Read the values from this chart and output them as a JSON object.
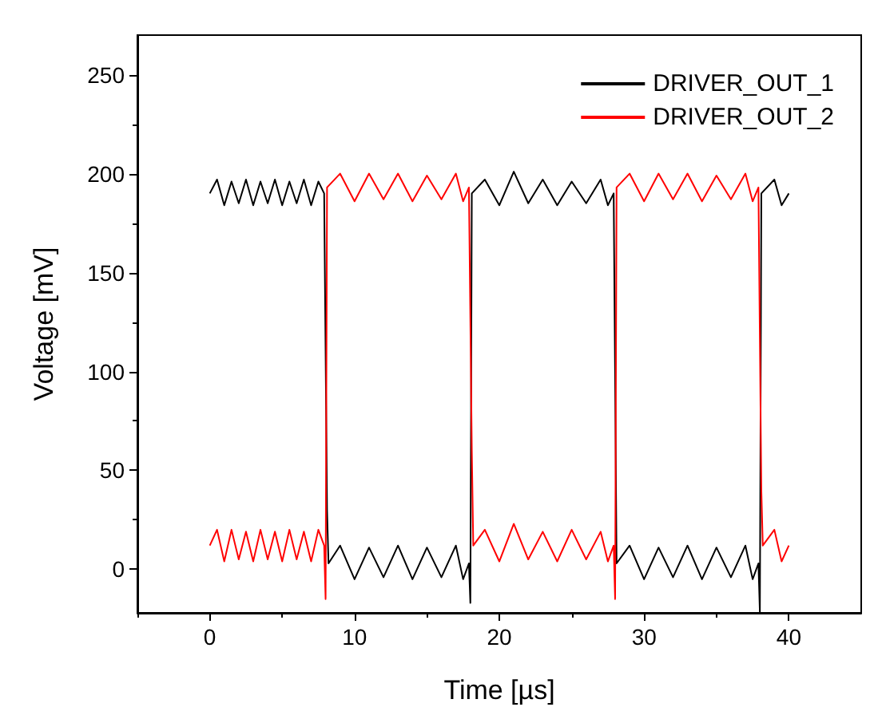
{
  "chart_data": {
    "type": "line",
    "xlabel": "Time [µs]",
    "ylabel": "Voltage [mV]",
    "xlim": [
      -5,
      45
    ],
    "ylim": [
      -22,
      270
    ],
    "xticks": [
      0,
      10,
      20,
      30,
      40
    ],
    "yticks": [
      0,
      50,
      100,
      150,
      200,
      250
    ],
    "grid": false,
    "legend": "top right",
    "marker": "none",
    "line_style": "solid",
    "series": [
      {
        "name": "DRIVER_OUT_1",
        "color": "#000000",
        "x": [
          0,
          0.5,
          1,
          1.5,
          2,
          2.5,
          3,
          3.5,
          4,
          4.5,
          5,
          5.5,
          6,
          6.5,
          7,
          7.5,
          7.9,
          8.1,
          8.2,
          9,
          10,
          11,
          12,
          13,
          14,
          15,
          16,
          17,
          17.5,
          17.9,
          18,
          18.1,
          19,
          20,
          21,
          22,
          23,
          24,
          25,
          26,
          27,
          27.5,
          27.9,
          28.1,
          29,
          30,
          31,
          32,
          33,
          34,
          35,
          36,
          37,
          37.5,
          37.9,
          38,
          38.1,
          39,
          39.5,
          40
        ],
        "values": [
          190,
          197,
          184,
          196,
          185,
          197,
          184,
          196,
          185,
          197,
          184,
          196,
          185,
          197,
          184,
          196,
          190,
          30,
          3,
          12,
          -5,
          11,
          -4,
          12,
          -5,
          11,
          -4,
          12,
          -5,
          3,
          -17,
          190,
          197,
          184,
          201,
          185,
          197,
          184,
          196,
          185,
          197,
          184,
          190,
          3,
          12,
          -5,
          11,
          -4,
          12,
          -5,
          11,
          -4,
          12,
          -5,
          3,
          -22,
          190,
          197,
          184,
          190
        ]
      },
      {
        "name": "DRIVER_OUT_2",
        "color": "#ff0000",
        "x": [
          0,
          0.5,
          1,
          1.5,
          2,
          2.5,
          3,
          3.5,
          4,
          4.5,
          5,
          5.5,
          6,
          6.5,
          7,
          7.5,
          7.9,
          8,
          8.1,
          9,
          10,
          11,
          12,
          13,
          14,
          15,
          16,
          17,
          17.5,
          17.9,
          18.1,
          18.2,
          19,
          20,
          21,
          22,
          23,
          24,
          25,
          26,
          27,
          27.5,
          27.9,
          28,
          28.1,
          29,
          30,
          31,
          32,
          33,
          34,
          35,
          36,
          37,
          37.5,
          37.9,
          38.1,
          38.2,
          39,
          39.5,
          40
        ],
        "values": [
          12,
          20,
          4,
          20,
          5,
          19,
          4,
          20,
          5,
          19,
          4,
          20,
          5,
          19,
          4,
          20,
          12,
          -15,
          193,
          200,
          186,
          200,
          187,
          200,
          186,
          199,
          187,
          200,
          186,
          193,
          60,
          12,
          20,
          4,
          23,
          5,
          19,
          4,
          20,
          5,
          19,
          4,
          12,
          -15,
          193,
          200,
          186,
          200,
          187,
          200,
          186,
          199,
          187,
          200,
          186,
          193,
          40,
          12,
          20,
          4,
          12
        ]
      }
    ]
  }
}
